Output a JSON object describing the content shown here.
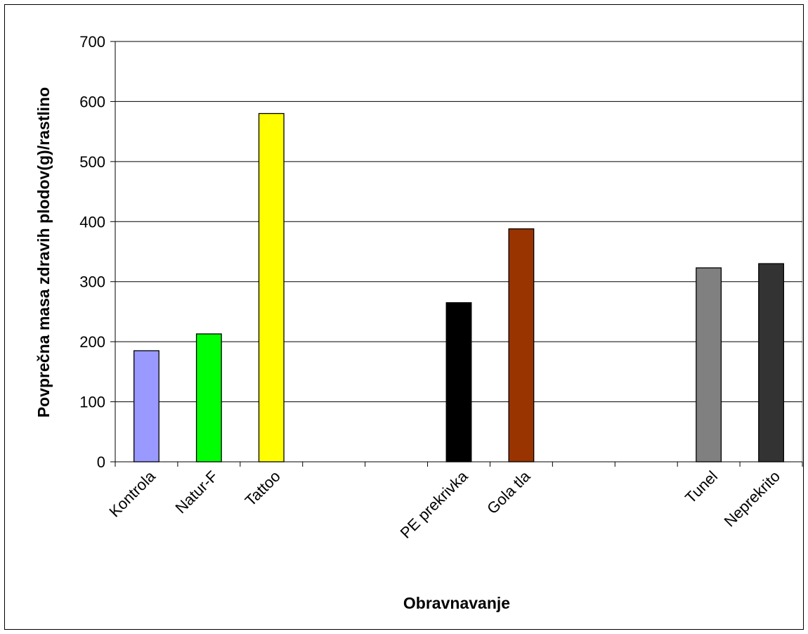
{
  "chart_data": {
    "type": "bar",
    "title": "",
    "xlabel": "Obravnavanje",
    "ylabel": "Povprečna masa zdravih plodov(g)/rastlino",
    "ylim": [
      0,
      700
    ],
    "yticks": [
      "0",
      "100",
      "200",
      "300",
      "400",
      "500",
      "600",
      "700"
    ],
    "grid": true,
    "categories": [
      "Kontrola",
      "Natur-F",
      "Tattoo",
      "",
      "",
      "PE prekrivka",
      "Gola tla",
      "",
      "",
      "Tunel",
      "Neprekrito"
    ],
    "values": [
      185,
      213,
      580,
      null,
      null,
      265,
      388,
      null,
      null,
      323,
      330
    ],
    "colors": [
      "#9999ff",
      "#00ff00",
      "#ffff00",
      null,
      null,
      "#000000",
      "#993300",
      null,
      null,
      "#808080",
      "#333333"
    ]
  }
}
